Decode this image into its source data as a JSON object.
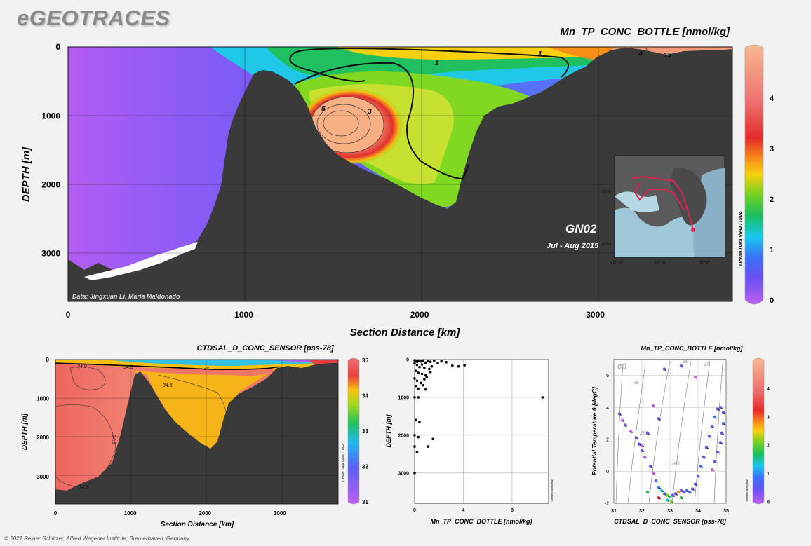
{
  "brand": "eGEOTRACES",
  "footer": "© 2021 Reiner Schlitzer, Alfred Wegener Institute, Bremerhaven, Germany",
  "main_section": {
    "title": "Mn_TP_CONC_BOTTLE [nmol/kg]",
    "data_credit": "Data: Jingxuan Li, Maria Maldonado",
    "cruise_label": "GN02",
    "cruise_date": "Jul - Aug 2015",
    "odv_credit": "Ocean Data View / DIVA",
    "contour_labels": [
      "1",
      "1",
      "4",
      "15",
      "5",
      "3"
    ],
    "map": {
      "lat_labels": [
        "70°N",
        "60°N"
      ],
      "lon_labels": [
        "120°W",
        "80°W",
        "40°W"
      ]
    }
  },
  "chart_data": [
    {
      "type": "heatmap",
      "title": "Mn_TP_CONC_BOTTLE [nmol/kg]",
      "xlabel": "Section Distance [km]",
      "ylabel": "DEPTH [m]",
      "x_ticks": [
        0,
        1000,
        2000,
        3000
      ],
      "y_ticks": [
        0,
        1000,
        2000,
        3000
      ],
      "xlim": [
        0,
        3780
      ],
      "ylim": [
        3700,
        0
      ],
      "colorbar": {
        "range": [
          0,
          5
        ],
        "ticks": [
          0,
          1,
          2,
          3,
          4
        ]
      },
      "contour_levels": [
        1,
        3,
        4,
        5,
        15
      ],
      "grid": true
    },
    {
      "type": "heatmap",
      "title": "CTDSAL_D_CONC_SENSOR [pss-78]",
      "xlabel": "Section Distance [km]",
      "ylabel": "DEPTH [m]",
      "x_ticks": [
        0,
        1000,
        2000,
        3000
      ],
      "y_ticks": [
        0,
        1000,
        2000,
        3000
      ],
      "xlim": [
        0,
        3780
      ],
      "ylim": [
        3700,
        0
      ],
      "colorbar": {
        "range": [
          31,
          35
        ],
        "ticks": [
          31,
          32,
          33,
          34,
          35
        ]
      },
      "contour_labels": [
        "34.9",
        "34.5",
        "34",
        "34.5",
        "34.9",
        "34.9"
      ],
      "odv_credit": "Ocean Data View / DIVA",
      "grid": true
    },
    {
      "type": "scatter",
      "title": "",
      "xlabel": "Mn_TP_CONC_BOTTLE [nmol/kg]",
      "ylabel": "DEPTH [m]",
      "x_ticks": [
        0,
        4,
        8
      ],
      "y_ticks": [
        0,
        1000,
        2000,
        3000
      ],
      "xlim": [
        0,
        11
      ],
      "ylim": [
        3800,
        0
      ],
      "odv_credit": "Ocean Data View",
      "points": [
        [
          0.0,
          20
        ],
        [
          0.1,
          40
        ],
        [
          0.2,
          60
        ],
        [
          0.3,
          30
        ],
        [
          0.5,
          50
        ],
        [
          0.7,
          25
        ],
        [
          0.9,
          80
        ],
        [
          1.1,
          40
        ],
        [
          1.3,
          60
        ],
        [
          1.6,
          30
        ],
        [
          1.9,
          100
        ],
        [
          2.2,
          45
        ],
        [
          2.6,
          70
        ],
        [
          3.1,
          160
        ],
        [
          3.6,
          180
        ],
        [
          4.1,
          150
        ],
        [
          0.0,
          100
        ],
        [
          0.2,
          140
        ],
        [
          0.4,
          200
        ],
        [
          0.6,
          130
        ],
        [
          0.8,
          220
        ],
        [
          1.2,
          250
        ],
        [
          1.4,
          180
        ],
        [
          0.1,
          300
        ],
        [
          0.3,
          350
        ],
        [
          0.6,
          380
        ],
        [
          0.9,
          420
        ],
        [
          1.3,
          330
        ],
        [
          0.0,
          500
        ],
        [
          0.2,
          560
        ],
        [
          0.5,
          620
        ],
        [
          0.8,
          520
        ],
        [
          1.0,
          470
        ],
        [
          0.1,
          700
        ],
        [
          0.3,
          770
        ],
        [
          0.7,
          680
        ],
        [
          0.9,
          790
        ],
        [
          0.0,
          1000
        ],
        [
          0.3,
          1000
        ],
        [
          10.5,
          1000
        ],
        [
          0.1,
          1600
        ],
        [
          0.4,
          1650
        ],
        [
          0.0,
          2000
        ],
        [
          0.3,
          2050
        ],
        [
          1.5,
          2100
        ],
        [
          1.1,
          2300
        ],
        [
          0.0,
          2300
        ],
        [
          0.2,
          2450
        ],
        [
          0.0,
          3000
        ]
      ]
    },
    {
      "type": "scatter",
      "title": "Mn_TP_CONC_BOTTLE [nmol/kg]",
      "xlabel": "CTDSAL_D_CONC_SENSOR [pss-78]",
      "ylabel": "Potential Temperature θ [degC]",
      "x_ticks": [
        31,
        32,
        33,
        34,
        35
      ],
      "y_ticks": [
        -2,
        0,
        2,
        4,
        6
      ],
      "xlim": [
        31,
        35
      ],
      "ylim": [
        -2,
        7
      ],
      "sigma_label": "σ0",
      "isopycnal_labels": [
        "25",
        "25.5",
        "26",
        "26.5",
        "27"
      ],
      "colorbar": {
        "range": [
          0,
          5
        ],
        "ticks": [
          0,
          1,
          2,
          3,
          4
        ]
      },
      "odv_credit": "Ocean Data View",
      "points": [
        [
          31.2,
          3.6,
          0.5
        ],
        [
          31.3,
          3.2,
          0.3
        ],
        [
          31.4,
          2.9,
          0.6
        ],
        [
          31.6,
          2.5,
          0.4
        ],
        [
          31.8,
          2.1,
          0.7
        ],
        [
          31.9,
          1.7,
          0.5
        ],
        [
          32.0,
          1.3,
          0.8
        ],
        [
          32.1,
          0.9,
          0.4
        ],
        [
          32.3,
          0.3,
          0.6
        ],
        [
          32.4,
          -0.1,
          0.3
        ],
        [
          32.5,
          -0.6,
          0.9
        ],
        [
          32.6,
          -1.0,
          1.2
        ],
        [
          32.7,
          -1.2,
          1.5
        ],
        [
          32.8,
          -1.4,
          0.6
        ],
        [
          32.9,
          -1.5,
          2.4
        ],
        [
          33.0,
          -1.6,
          1.8
        ],
        [
          33.1,
          -1.5,
          0.7
        ],
        [
          33.2,
          -1.4,
          0.5
        ],
        [
          33.3,
          -1.3,
          3.0
        ],
        [
          33.4,
          -1.2,
          0.8
        ],
        [
          33.5,
          -1.3,
          0.6
        ],
        [
          33.6,
          -1.2,
          1.1
        ],
        [
          33.7,
          -1.3,
          0.9
        ],
        [
          33.8,
          -1.1,
          0.7
        ],
        [
          33.9,
          -0.8,
          0.6
        ],
        [
          34.0,
          -0.3,
          0.8
        ],
        [
          34.1,
          0.3,
          0.9
        ],
        [
          34.2,
          0.9,
          0.7
        ],
        [
          34.3,
          1.5,
          0.5
        ],
        [
          34.4,
          2.2,
          0.8
        ],
        [
          34.5,
          2.8,
          0.6
        ],
        [
          34.6,
          3.4,
          0.9
        ],
        [
          34.7,
          3.9,
          0.7
        ],
        [
          34.8,
          4.0,
          0.8
        ],
        [
          34.9,
          3.7,
          0.6
        ],
        [
          34.9,
          3.0,
          0.9
        ],
        [
          34.85,
          2.4,
          0.5
        ],
        [
          34.8,
          1.8,
          0.6
        ],
        [
          34.7,
          1.2,
          0.7
        ],
        [
          34.6,
          0.6,
          0.5
        ],
        [
          34.5,
          0.1,
          0.4
        ],
        [
          32.2,
          -1.3,
          2.0
        ],
        [
          32.9,
          -1.8,
          1.6
        ],
        [
          33.05,
          -1.9,
          2.1
        ],
        [
          32.6,
          -1.65,
          3.5
        ],
        [
          33.4,
          -1.65,
          1.7
        ],
        [
          32.8,
          6.4,
          0.8
        ],
        [
          33.4,
          6.6,
          0.5
        ],
        [
          33.9,
          5.9,
          0.4
        ],
        [
          32.4,
          4.1,
          0.3
        ],
        [
          32.6,
          3.3,
          0.5
        ],
        [
          32.2,
          2.4,
          0.6
        ],
        [
          32.0,
          1.6,
          0.4
        ]
      ]
    }
  ]
}
